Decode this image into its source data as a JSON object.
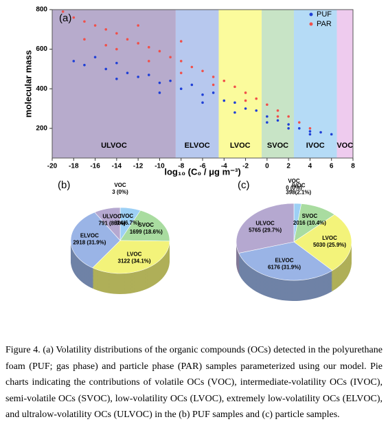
{
  "chart_data": [
    {
      "type": "scatter",
      "panel": "(a)",
      "x_label": "log₁₀ (C₀ / μg m⁻³)",
      "y_label": "molecular mass",
      "xlim": [
        -20,
        8
      ],
      "ylim": [
        50,
        800
      ],
      "xticks": [
        -20,
        -18,
        -16,
        -14,
        -12,
        -10,
        -8,
        -6,
        -4,
        -2,
        0,
        2,
        4,
        6,
        8
      ],
      "yticks": [
        200,
        400,
        600,
        800
      ],
      "legend": "upper right",
      "regions": [
        {
          "label": "ULVOC",
          "from": -20,
          "to": -8.5,
          "color": "#b7abcc"
        },
        {
          "label": "ELVOC",
          "from": -8.5,
          "to": -4.5,
          "color": "#b7c8ee"
        },
        {
          "label": "LVOC",
          "from": -4.5,
          "to": -0.5,
          "color": "#fbfb9c"
        },
        {
          "label": "SVOC",
          "from": -0.5,
          "to": 2.5,
          "color": "#c8e4c6"
        },
        {
          "label": "IVOC",
          "from": 2.5,
          "to": 6.5,
          "color": "#b5dbf6"
        },
        {
          "label": "VOC",
          "from": 6.5,
          "to": 8,
          "color": "#eecbee"
        }
      ],
      "series": [
        {
          "name": "PUF",
          "color": "#1f3fd6",
          "x": [
            -18,
            -17,
            -16,
            -15,
            -14,
            -13,
            -12,
            -11,
            -10,
            -9,
            -8,
            -7,
            -6,
            -5,
            -4,
            -3,
            -2,
            -1,
            0,
            1,
            2,
            3,
            4,
            5,
            6,
            -6,
            -3,
            0,
            2,
            4,
            -10,
            -14
          ],
          "values": [
            540,
            520,
            560,
            500,
            530,
            480,
            460,
            470,
            430,
            440,
            400,
            420,
            370,
            380,
            340,
            330,
            300,
            290,
            260,
            240,
            220,
            200,
            185,
            180,
            170,
            330,
            280,
            230,
            200,
            170,
            380,
            450
          ]
        },
        {
          "name": "PAR",
          "color": "#f0504a",
          "x": [
            -19,
            -18,
            -17,
            -16,
            -15,
            -14,
            -13,
            -12,
            -11,
            -10,
            -9,
            -8,
            -7,
            -6,
            -5,
            -4,
            -3,
            -2,
            -1,
            0,
            1,
            2,
            3,
            4,
            -17,
            -14,
            -11,
            -8,
            -5,
            -2,
            1,
            -12,
            -8,
            -15
          ],
          "values": [
            790,
            760,
            740,
            720,
            700,
            680,
            650,
            630,
            610,
            590,
            560,
            540,
            510,
            490,
            460,
            440,
            410,
            380,
            350,
            320,
            290,
            260,
            230,
            200,
            650,
            600,
            540,
            480,
            420,
            340,
            260,
            720,
            640,
            620
          ]
        }
      ]
    },
    {
      "type": "pie",
      "panel": "(b)",
      "categories": [
        "VOC",
        "IVOC",
        "SVOC",
        "LVOC",
        "ELVOC",
        "ULVOC"
      ],
      "values": [
        3,
        614,
        1699,
        3122,
        2918,
        791
      ],
      "value_labels": [
        "3 (0%)",
        "614(6.7%)",
        "1699 (18.6%)",
        "3122 (34.1%)",
        "2918 (31.9%)",
        "791 (8.6%)"
      ],
      "colors": [
        "#e8b8e8",
        "#9dd0f5",
        "#a9dca0",
        "#f3f37a",
        "#9ab4e6",
        "#b5a8d0"
      ]
    },
    {
      "type": "pie",
      "panel": "(c)",
      "categories": [
        "VOC",
        "IVOC",
        "SVOC",
        "LVOC",
        "ELVOC",
        "ULVOC"
      ],
      "values": [
        0,
        398,
        2016,
        5030,
        6176,
        5765
      ],
      "value_labels": [
        "0 (0%)",
        "398(2.1%)",
        "2016 (10.4%)",
        "5030 (25.9%)",
        "6176 (31.9%)",
        "5765 (29.7%)"
      ],
      "colors": [
        "#e8b8e8",
        "#9dd0f5",
        "#a9dca0",
        "#f3f37a",
        "#9ab4e6",
        "#b5a8d0"
      ]
    }
  ],
  "caption": "Figure 4. (a) Volatility distributions of the organic compounds (OCs) detected in the polyurethane foam (PUF; gas phase) and particle phase (PAR) samples parameterized using our model. Pie charts indicating the contributions of volatile OCs (VOC), intermediate-volatility OCs (IVOC), semi-volatile OCs (SVOC), low-volatility OCs (LVOC), extremely low-volatility OCs (ELVOC), and ultralow-volatility OCs (ULVOC) in the (b) PUF samples and (c) particle samples."
}
